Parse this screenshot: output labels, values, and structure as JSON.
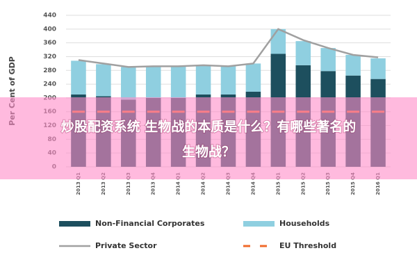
{
  "chart_data": {
    "type": "bar",
    "ylabel": "Per Cent of GDP",
    "categories": [
      "2013 Q1",
      "2013 Q2",
      "2013 Q3",
      "2013 Q4",
      "2014 Q1",
      "2014 Q2",
      "2014 Q3",
      "2014 Q4",
      "2015 Q1",
      "2015 Q2",
      "2015 Q3",
      "2015 Q4",
      "2016 Q1"
    ],
    "series": [
      {
        "name": "Non-Financial Corporates",
        "type": "bar",
        "color": "#1d4f5e",
        "values": [
          210,
          205,
          195,
          200,
          200,
          210,
          210,
          218,
          328,
          295,
          278,
          265,
          255
        ]
      },
      {
        "name": "Households",
        "type": "bar",
        "color": "#8fcfe0",
        "values": [
          98,
          93,
          95,
          92,
          92,
          85,
          82,
          82,
          72,
          70,
          67,
          60,
          60
        ]
      },
      {
        "name": "Private Sector",
        "type": "line",
        "color": "#a0a0a0",
        "values": [
          310,
          300,
          290,
          292,
          292,
          295,
          292,
          300,
          400,
          368,
          345,
          325,
          318
        ]
      },
      {
        "name": "EU Threshold",
        "type": "dash",
        "color": "#f06a2a",
        "values": [
          160,
          160,
          160,
          160,
          160,
          160,
          160,
          160,
          160,
          160,
          160,
          160,
          160
        ]
      }
    ],
    "ylim": [
      0,
      440
    ],
    "yticks": [
      0,
      40,
      80,
      120,
      160,
      200,
      240,
      280,
      320,
      360,
      400,
      440
    ],
    "grid": true
  },
  "overlay": {
    "lines": [
      "炒股配资系统 生物战的本质是什么？有哪些著名的",
      "生物战？"
    ]
  }
}
